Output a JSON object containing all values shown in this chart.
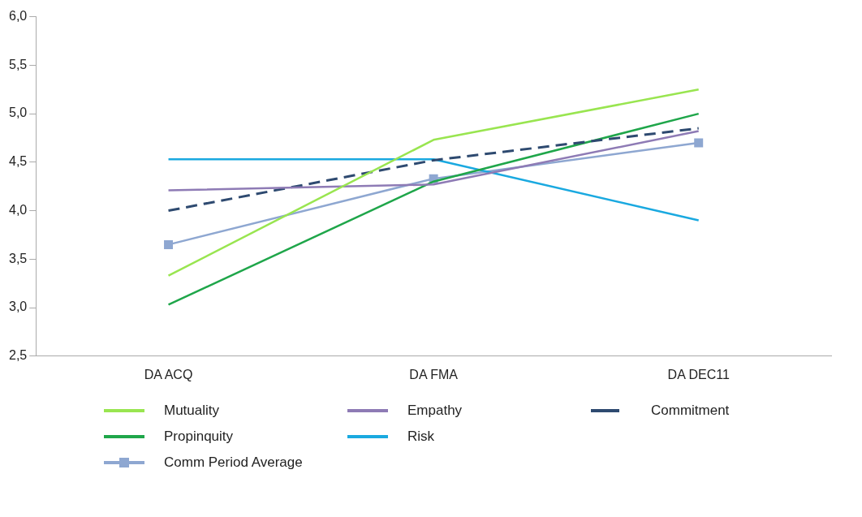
{
  "chart_data": {
    "type": "line",
    "categories": [
      "DA ACQ",
      "DA FMA",
      "DA DEC11"
    ],
    "ylim": [
      2.5,
      6.0
    ],
    "yticks": [
      {
        "value": 2.5,
        "label": "2,5"
      },
      {
        "value": 3.0,
        "label": "3,0"
      },
      {
        "value": 3.5,
        "label": "3,5"
      },
      {
        "value": 4.0,
        "label": "4,0"
      },
      {
        "value": 4.5,
        "label": "4,5"
      },
      {
        "value": 5.0,
        "label": "5,0"
      },
      {
        "value": 5.5,
        "label": "5,5"
      },
      {
        "value": 6.0,
        "label": "6,0"
      }
    ],
    "grid": false,
    "legend": "bottom",
    "marker": "none",
    "line_style": "solid",
    "series": [
      {
        "name": "Mutuality",
        "color": "#99e550",
        "values": [
          3.33,
          4.73,
          5.25
        ]
      },
      {
        "name": "Empathy",
        "color": "#8e7bb5",
        "values": [
          4.21,
          4.27,
          4.82
        ]
      },
      {
        "name": "Commitment",
        "color": "#2e4a70",
        "values": [
          4.0,
          4.52,
          4.85
        ],
        "line_style": "dashed"
      },
      {
        "name": "Propinquity",
        "color": "#1fa64a",
        "values": [
          3.03,
          4.3,
          5.0
        ]
      },
      {
        "name": "Risk",
        "color": "#1aa9e0",
        "values": [
          4.53,
          4.53,
          3.9
        ]
      },
      {
        "name": "Comm Period Average",
        "color": "#8ea7d1",
        "values": [
          3.65,
          4.33,
          4.7
        ],
        "marker": "square"
      }
    ]
  }
}
